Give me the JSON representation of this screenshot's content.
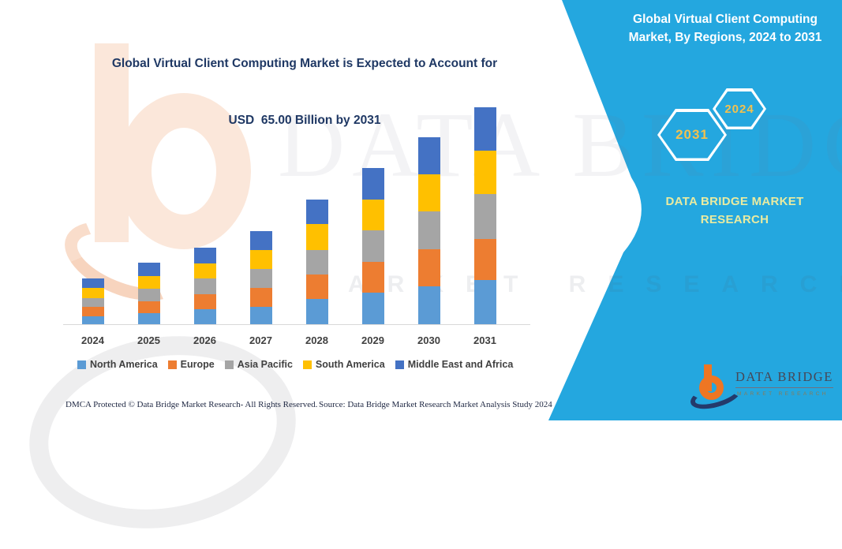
{
  "header": {
    "title_line1": "Global Virtual Client Computing Market is Expected to Account for",
    "title_line2": "USD  65.00 Billion by 2031"
  },
  "right_panel": {
    "title": "Global Virtual Client Computing Market, By Regions, 2024 to 2031",
    "hexagon_back_label": "2031",
    "hexagon_front_label": "2024",
    "brand_line1": "DATA BRIDGE MARKET",
    "brand_line2": "RESEARCH",
    "panel_color": "#24A7DF",
    "hexagon_text_color": "#F2C14E",
    "brand_text_color": "#E9EBA1"
  },
  "logo": {
    "name_text": "DATA BRIDGE",
    "sub_text": "MARKET RESEARCH"
  },
  "watermark": {
    "big_text": "DATA BRIDGE",
    "sub_text": "MARKET RESEARCH"
  },
  "footer": {
    "left": "DMCA Protected © Data Bridge Market Research-  All Rights Reserved.",
    "right": "Source: Data Bridge Market Research  Market Analysis Study 2024"
  },
  "chart_data": {
    "type": "bar",
    "stacked": true,
    "title": "Global Virtual Client Computing Market is Expected to Account for USD 65.00 Billion by 2031",
    "unit": "USD Billion",
    "categories": [
      "2024",
      "2025",
      "2026",
      "2027",
      "2028",
      "2029",
      "2030",
      "2031"
    ],
    "series": [
      {
        "name": "North America",
        "color": "#5B9BD5",
        "values": [
          2.4,
          3.2,
          4.4,
          5.3,
          7.6,
          9.4,
          11.4,
          13.3
        ]
      },
      {
        "name": "Europe",
        "color": "#ED7D31",
        "values": [
          2.9,
          3.7,
          4.6,
          5.7,
          7.3,
          9.3,
          11.1,
          12.2
        ]
      },
      {
        "name": "Asia Pacific",
        "color": "#A5A5A5",
        "values": [
          2.6,
          3.7,
          4.6,
          5.6,
          7.3,
          9.3,
          11.2,
          13.5
        ]
      },
      {
        "name": "South America",
        "color": "#FFC000",
        "values": [
          2.9,
          3.8,
          4.7,
          5.7,
          7.7,
          9.4,
          11.2,
          13.0
        ]
      },
      {
        "name": "Middle East and Africa",
        "color": "#4472C4",
        "values": [
          3.0,
          3.9,
          4.7,
          5.7,
          7.4,
          9.3,
          11.2,
          13.0
        ]
      }
    ],
    "totals": [
      13.8,
      18.3,
      23.0,
      28.0,
      37.3,
      46.7,
      56.1,
      65.0
    ],
    "ylim": [
      0,
      65
    ],
    "y_axis_visible": false,
    "grid": false,
    "legend_position": "bottom",
    "axis_color": "#D9D9D9"
  }
}
